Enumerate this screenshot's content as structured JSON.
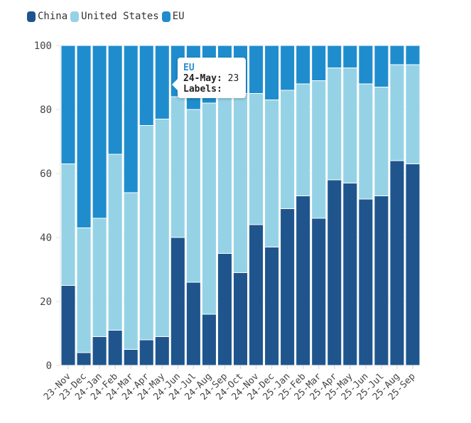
{
  "chart_data": {
    "type": "bar",
    "stacked": true,
    "title": "",
    "xlabel": "",
    "ylabel": "",
    "ylim": [
      0,
      100
    ],
    "yticks": [
      0,
      20,
      40,
      60,
      80,
      100
    ],
    "grid": true,
    "legend_position": "top-left",
    "categories": [
      "23-Nov",
      "23-Dec",
      "24-Jan",
      "24-Feb",
      "24-Mar",
      "24-Apr",
      "24-May",
      "24-Jun",
      "24-Jul",
      "24-Aug",
      "24-Sep",
      "24-Oct",
      "24-Nov",
      "24-Dec",
      "25-Jan",
      "25-Feb",
      "25-Mar",
      "25-Apr",
      "25-May",
      "25-Jun",
      "25-Jul",
      "25-Aug",
      "25-Sep"
    ],
    "series": [
      {
        "name": "China",
        "color": "#1f558c",
        "values": [
          25,
          4,
          9,
          11,
          5,
          8,
          9,
          40,
          26,
          16,
          35,
          29,
          44,
          37,
          49,
          53,
          46,
          58,
          57,
          52,
          53,
          64,
          63
        ]
      },
      {
        "name": "United States",
        "color": "#96d2e5",
        "values": [
          38,
          39,
          37,
          55,
          49,
          67,
          68,
          44,
          54,
          66,
          49,
          56,
          41,
          46,
          37,
          35,
          43,
          35,
          36,
          36,
          34,
          30,
          31
        ]
      },
      {
        "name": "EU",
        "color": "#1f8dcd",
        "values": [
          37,
          57,
          54,
          34,
          46,
          25,
          23,
          16,
          20,
          18,
          16,
          15,
          15,
          17,
          14,
          12,
          11,
          7,
          7,
          12,
          13,
          6,
          6
        ]
      }
    ]
  },
  "tooltip": {
    "series": "EU",
    "label": "24-May:",
    "value": "23",
    "extra_label": "Labels:"
  }
}
